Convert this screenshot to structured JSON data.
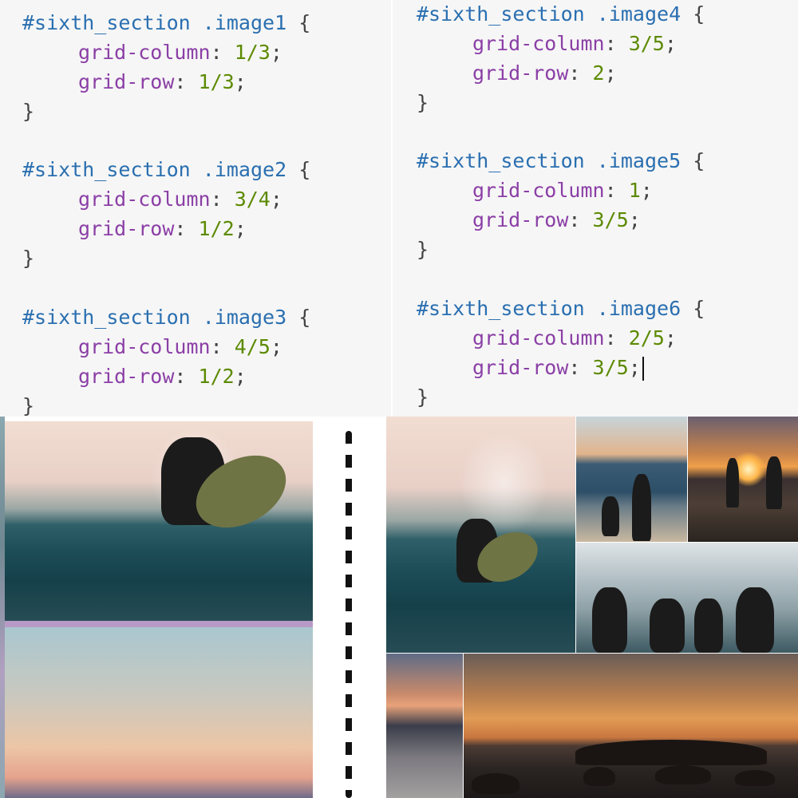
{
  "code": {
    "left": [
      {
        "selector": "#sixth_section .image1",
        "rules": [
          {
            "prop": "grid-column",
            "value": "1/3"
          },
          {
            "prop": "grid-row",
            "value": "1/3"
          }
        ]
      },
      {
        "selector": "#sixth_section .image2",
        "rules": [
          {
            "prop": "grid-column",
            "value": "3/4"
          },
          {
            "prop": "grid-row",
            "value": "1/2"
          }
        ]
      },
      {
        "selector": "#sixth_section .image3",
        "rules": [
          {
            "prop": "grid-column",
            "value": "4/5"
          },
          {
            "prop": "grid-row",
            "value": "1/2"
          }
        ]
      }
    ],
    "right": [
      {
        "selector": "#sixth_section .image4",
        "rules": [
          {
            "prop": "grid-column",
            "value": "3/5"
          },
          {
            "prop": "grid-row",
            "value": "2"
          }
        ]
      },
      {
        "selector": "#sixth_section .image5",
        "rules": [
          {
            "prop": "grid-column",
            "value": "1"
          },
          {
            "prop": "grid-row",
            "value": "3/5"
          }
        ]
      },
      {
        "selector": "#sixth_section .image6",
        "rules": [
          {
            "prop": "grid-column",
            "value": "2/5"
          },
          {
            "prop": "grid-row",
            "value": "3/5"
          }
        ]
      }
    ],
    "punct": {
      "open": " {",
      "close": "}",
      "colon": ": ",
      "semicolon": ";"
    }
  },
  "colors": {
    "selector": "#2a6fb0",
    "property": "#8b3fa6",
    "value": "#5c8a00",
    "editor_background": "#f6f6f6"
  }
}
